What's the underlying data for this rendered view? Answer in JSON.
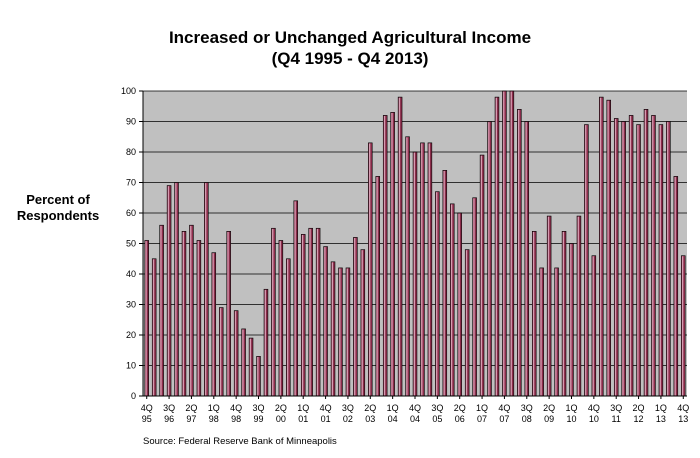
{
  "chart_data": {
    "type": "bar",
    "title": "Increased or Unchanged Agricultural Income",
    "subtitle": "(Q4 1995 - Q4 2013)",
    "ylabel": "Percent of Respondents",
    "xlabel": "",
    "ylim": [
      0,
      100
    ],
    "yticks": [
      0,
      10,
      20,
      30,
      40,
      50,
      60,
      70,
      80,
      90,
      100
    ],
    "grid": true,
    "colors": {
      "bar": "#8b2c4a",
      "bar_light": "#d69ab0",
      "plot_bg": "#c0c0c0"
    },
    "categories": [
      "4Q 95",
      "1Q 96",
      "2Q 96",
      "3Q 96",
      "4Q 96",
      "1Q 97",
      "2Q 97",
      "3Q 97",
      "4Q 97",
      "1Q 98",
      "2Q 98",
      "3Q 98",
      "4Q 98",
      "1Q 99",
      "2Q 99",
      "3Q 99",
      "4Q 99",
      "1Q 00",
      "2Q 00",
      "3Q 00",
      "4Q 00",
      "1Q 01",
      "2Q 01",
      "3Q 01",
      "4Q 01",
      "1Q 02",
      "2Q 02",
      "3Q 02",
      "4Q 02",
      "1Q 03",
      "2Q 03",
      "3Q 03",
      "4Q 03",
      "1Q 04",
      "2Q 04",
      "3Q 04",
      "4Q 04",
      "1Q 05",
      "2Q 05",
      "3Q 05",
      "4Q 05",
      "1Q 06",
      "2Q 06",
      "3Q 06",
      "4Q 06",
      "1Q 07",
      "2Q 07",
      "3Q 07",
      "4Q 07",
      "1Q 08",
      "2Q 08",
      "3Q 08",
      "4Q 08",
      "1Q 09",
      "2Q 09",
      "3Q 09",
      "4Q 09",
      "1Q 10",
      "2Q 10",
      "3Q 10",
      "4Q 10",
      "1Q 11",
      "2Q 11",
      "3Q 11",
      "4Q 11",
      "1Q 12",
      "2Q 12",
      "3Q 12",
      "4Q 12",
      "1Q 13",
      "2Q 13",
      "3Q 13",
      "4Q 13"
    ],
    "values": [
      51,
      45,
      56,
      69,
      70,
      54,
      56,
      51,
      70,
      47,
      29,
      54,
      28,
      22,
      19,
      13,
      35,
      55,
      51,
      45,
      64,
      53,
      55,
      55,
      49,
      44,
      42,
      42,
      52,
      48,
      83,
      72,
      92,
      93,
      98,
      85,
      80,
      83,
      83,
      67,
      74,
      63,
      60,
      48,
      65,
      79,
      90,
      98,
      100,
      100,
      94,
      90,
      54,
      42,
      59,
      42,
      54,
      50,
      59,
      89,
      46,
      98,
      97,
      91,
      90,
      92,
      89,
      94,
      92,
      89,
      90,
      72,
      46
    ],
    "xtick_labels": [
      {
        "top": "4Q",
        "bottom": "95",
        "index": 0
      },
      {
        "top": "3Q",
        "bottom": "96",
        "index": 3
      },
      {
        "top": "2Q",
        "bottom": "97",
        "index": 6
      },
      {
        "top": "1Q",
        "bottom": "98",
        "index": 9
      },
      {
        "top": "4Q",
        "bottom": "98",
        "index": 12
      },
      {
        "top": "3Q",
        "bottom": "99",
        "index": 15
      },
      {
        "top": "2Q",
        "bottom": "00",
        "index": 18
      },
      {
        "top": "1Q",
        "bottom": "01",
        "index": 21
      },
      {
        "top": "4Q",
        "bottom": "01",
        "index": 24
      },
      {
        "top": "3Q",
        "bottom": "02",
        "index": 27
      },
      {
        "top": "2Q",
        "bottom": "03",
        "index": 30
      },
      {
        "top": "1Q",
        "bottom": "04",
        "index": 33
      },
      {
        "top": "4Q",
        "bottom": "04",
        "index": 36
      },
      {
        "top": "3Q",
        "bottom": "05",
        "index": 39
      },
      {
        "top": "2Q",
        "bottom": "06",
        "index": 42
      },
      {
        "top": "1Q",
        "bottom": "07",
        "index": 45
      },
      {
        "top": "4Q",
        "bottom": "07",
        "index": 48
      },
      {
        "top": "3Q",
        "bottom": "08",
        "index": 51
      },
      {
        "top": "2Q",
        "bottom": "09",
        "index": 54
      },
      {
        "top": "1Q",
        "bottom": "10",
        "index": 57
      },
      {
        "top": "4Q",
        "bottom": "10",
        "index": 60
      },
      {
        "top": "3Q",
        "bottom": "11",
        "index": 63
      },
      {
        "top": "2Q",
        "bottom": "12",
        "index": 66
      },
      {
        "top": "1Q",
        "bottom": "13",
        "index": 69
      },
      {
        "top": "4Q",
        "bottom": "13",
        "index": 72
      }
    ],
    "source": "Source:  Federal Reserve  Bank of Minneapolis"
  }
}
